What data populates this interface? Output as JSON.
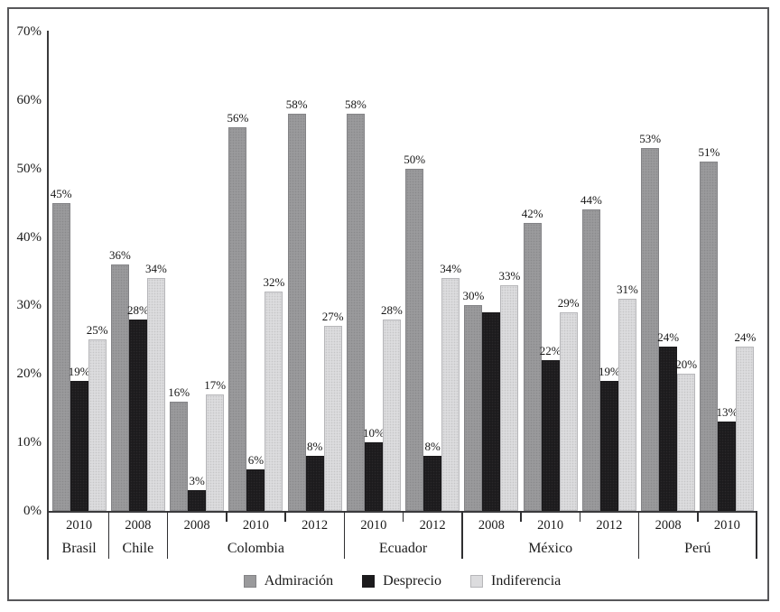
{
  "chart_data": {
    "type": "bar",
    "title": "",
    "xlabel": "",
    "ylabel": "",
    "ylim": [
      0,
      70
    ],
    "grid": false,
    "legend_position": "bottom",
    "ytick_labels": [
      "0%",
      "10%",
      "20%",
      "30%",
      "40%",
      "50%",
      "60%",
      "70%"
    ],
    "series": [
      {
        "name": "Admiración",
        "color": "#9a9a9c",
        "border": "#838386"
      },
      {
        "name": "Desprecio",
        "color": "#1c1b1d",
        "border": "#1c1b1d"
      },
      {
        "name": "Indiferencia",
        "color": "#dcdcde",
        "border": "#b6b6b9"
      }
    ],
    "countries": [
      {
        "name": "Brasil",
        "years": [
          "2010"
        ],
        "data": [
          [
            45,
            19,
            25
          ]
        ],
        "data_labels": [
          [
            "45%",
            "19%",
            "25%"
          ]
        ]
      },
      {
        "name": "Chile",
        "years": [
          "2008"
        ],
        "data": [
          [
            36,
            28,
            34
          ]
        ],
        "data_labels": [
          [
            "36%",
            "28%",
            "34%"
          ]
        ]
      },
      {
        "name": "Colombia",
        "years": [
          "2008",
          "2010",
          "2012"
        ],
        "data": [
          [
            16,
            3,
            17
          ],
          [
            56,
            6,
            32
          ],
          [
            58,
            8,
            27
          ]
        ],
        "data_labels": [
          [
            "16%",
            "3%",
            "17%"
          ],
          [
            "56%",
            "6%",
            "32%"
          ],
          [
            "58%",
            "8%",
            "27%"
          ]
        ]
      },
      {
        "name": "Ecuador",
        "years": [
          "2010",
          "2012"
        ],
        "data": [
          [
            58,
            10,
            28
          ],
          [
            50,
            8,
            34
          ]
        ],
        "data_labels": [
          [
            "58%",
            "10%",
            "28%"
          ],
          [
            "50%",
            "8%",
            "34%"
          ]
        ]
      },
      {
        "name": "México",
        "years": [
          "2008",
          "2010",
          "2012"
        ],
        "data": [
          [
            30,
            29,
            33
          ],
          [
            42,
            22,
            29
          ],
          [
            44,
            19,
            31
          ]
        ],
        "data_labels": [
          [
            "30%",
            "",
            "33%"
          ],
          [
            "42%",
            "22%",
            "29%"
          ],
          [
            "44%",
            "19%",
            "31%"
          ]
        ]
      },
      {
        "name": "Perú",
        "years": [
          "2008",
          "2010"
        ],
        "data": [
          [
            53,
            24,
            20
          ],
          [
            51,
            13,
            24
          ]
        ],
        "data_labels": [
          [
            "53%",
            "24%",
            "20%"
          ],
          [
            "51%",
            "13%",
            "24%"
          ]
        ]
      }
    ]
  }
}
